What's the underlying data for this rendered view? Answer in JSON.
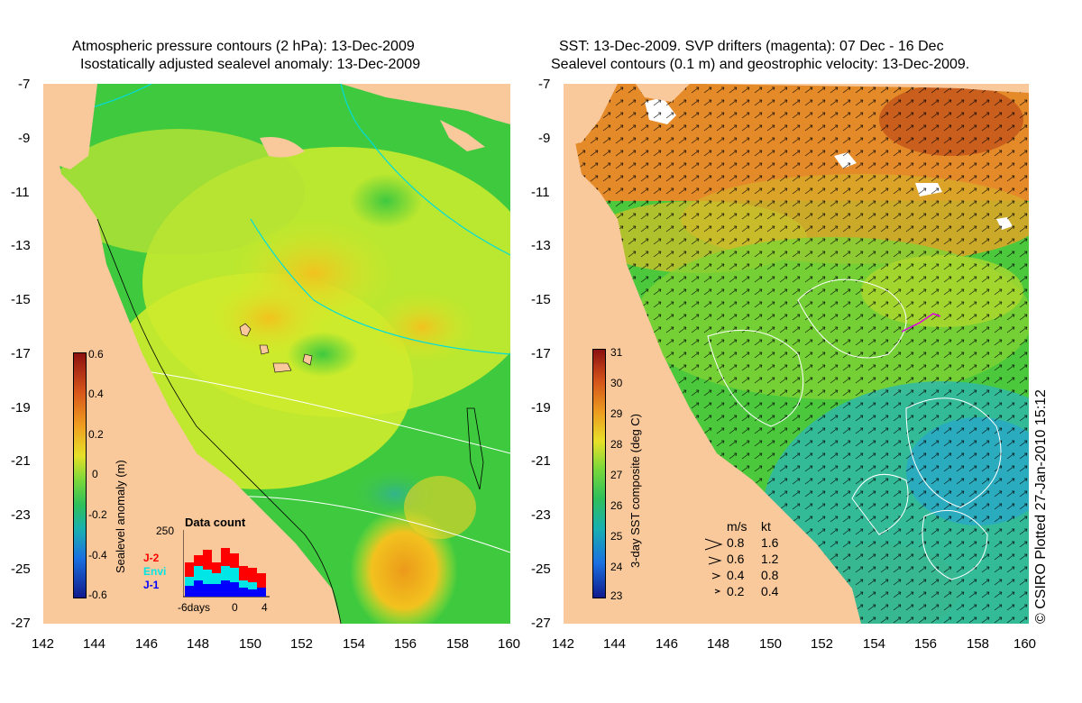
{
  "left_panel": {
    "title_line1": "Atmospheric pressure contours (2 hPa): 13-Dec-2009",
    "title_line2": "Isostatically adjusted sealevel anomaly: 13-Dec-2009",
    "colorbar_label": "Sealevel anomaly (m)",
    "colorbar_ticks": [
      "0.6",
      "0.4",
      "0.2",
      "0",
      "-0.2",
      "-0.4",
      "-0.6"
    ],
    "inset": {
      "title": "Data count",
      "ymax_label": "250",
      "legend": [
        {
          "name": "J-2",
          "color": "#ff0000"
        },
        {
          "name": "Envi",
          "color": "#00e5e5"
        },
        {
          "name": "J-1",
          "color": "#0000ff"
        }
      ],
      "x_labels": [
        "-6days",
        "0",
        "4"
      ]
    }
  },
  "right_panel": {
    "title_line1": "SST: 13-Dec-2009. SVP drifters (magenta): 07 Dec - 16 Dec",
    "title_line2": "Sealevel contours (0.1 m) and geostrophic velocity: 13-Dec-2009.",
    "colorbar_label": "3-day SST composite (deg C)",
    "colorbar_ticks": [
      "31",
      "30",
      "29",
      "28",
      "27",
      "26",
      "25",
      "24",
      "23"
    ],
    "velocity_legend": {
      "header_ms": "m/s",
      "header_kt": "kt",
      "rows": [
        {
          "ms": "0.8",
          "kt": "1.6"
        },
        {
          "ms": "0.6",
          "kt": "1.2"
        },
        {
          "ms": "0.4",
          "kt": "0.8"
        },
        {
          "ms": "0.2",
          "kt": "0.4"
        }
      ]
    }
  },
  "axes": {
    "lat_ticks": [
      "-7",
      "-9",
      "-11",
      "-13",
      "-15",
      "-17",
      "-19",
      "-21",
      "-23",
      "-25",
      "-27"
    ],
    "lon_ticks": [
      "142",
      "144",
      "146",
      "148",
      "150",
      "152",
      "154",
      "156",
      "158",
      "160"
    ]
  },
  "credit": "© CSIRO Plotted 27-Jan-2010 15:12",
  "colors": {
    "land": "#f9c89b",
    "ocean_green": "#3fc93f",
    "sla_yellow": "#d6ee2a",
    "sst_orange": "#e4862a",
    "sst_teal": "#2fb8a8"
  }
}
